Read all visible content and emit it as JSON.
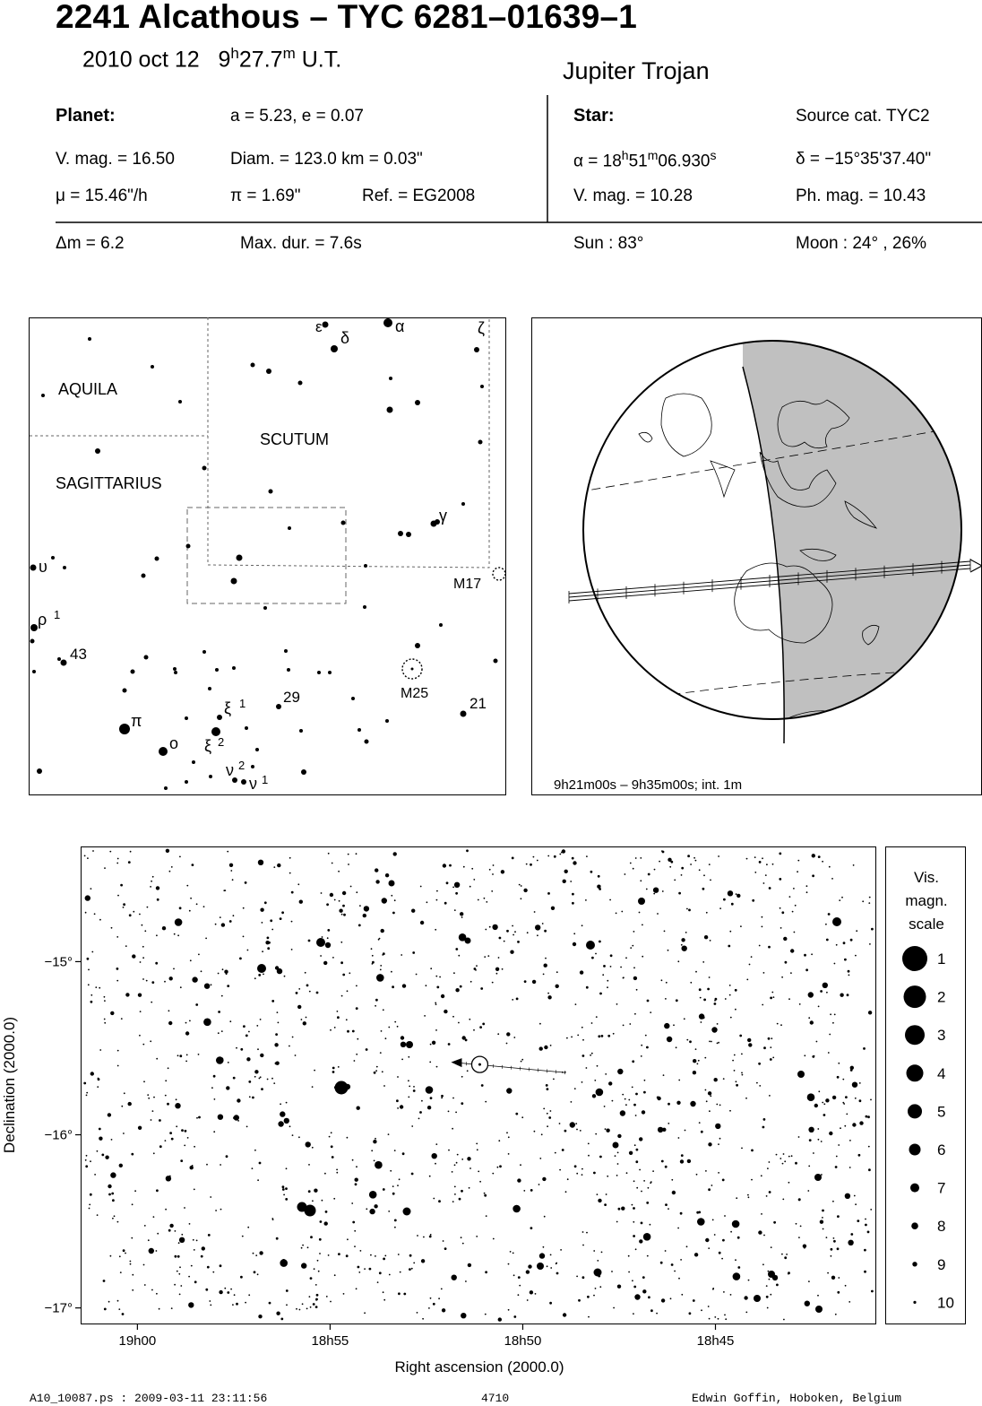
{
  "header": {
    "title": "2241 Alcathous  –  TYC 6281–01639–1",
    "date": "2010 oct 12",
    "time_h": "9",
    "time_h_unit": "h",
    "time_m": "27.7",
    "time_m_unit": "m",
    "time_ut": "U.T.",
    "class": "Jupiter Trojan"
  },
  "planet": {
    "heading": "Planet:",
    "orbit": "a = 5.23, e = 0.07",
    "vmag": "V. mag. = 16.50",
    "diam": "Diam. = 123.0 km = 0.03\"",
    "mu": "μ =  15.46\"/h",
    "pi": "π =  1.69\"",
    "ref": "Ref. = EG2008",
    "dm": "Δm = 6.2",
    "maxdur": "Max. dur. = 7.6s"
  },
  "star": {
    "heading": "Star:",
    "source": "Source cat.  TYC2",
    "alpha_pre": "α = 18",
    "alpha_h": "h",
    "alpha_min": "51",
    "alpha_m": "m",
    "alpha_sec": "06.930",
    "alpha_s": "s",
    "delta": "δ = −15°35'37.40\"",
    "vmag": "V. mag. = 10.28",
    "phmag": "Ph. mag. = 10.43",
    "sun": "Sun :  83°",
    "moon": "Moon :  24° , 26%"
  },
  "finder": {
    "constellations": [
      "AQUILA",
      "SCUTUM",
      "SAGITTARIUS"
    ],
    "labels": [
      {
        "t": "ε",
        "x": 352,
        "y": 370,
        "s": 17
      },
      {
        "t": "δ",
        "x": 380,
        "y": 383,
        "s": 18
      },
      {
        "t": "α",
        "x": 441,
        "y": 370,
        "s": 18
      },
      {
        "t": "ζ",
        "x": 533,
        "y": 372,
        "s": 18
      },
      {
        "t": "γ",
        "x": 490,
        "y": 581,
        "s": 18
      },
      {
        "t": "υ",
        "x": 43,
        "y": 638,
        "s": 18
      },
      {
        "t": "ρ",
        "x": 42,
        "y": 697,
        "s": 18
      },
      {
        "t": "1",
        "x": 60,
        "y": 690,
        "s": 13
      },
      {
        "t": "43",
        "x": 78,
        "y": 735,
        "s": 17
      },
      {
        "t": "M17",
        "x": 506,
        "y": 656,
        "s": 16
      },
      {
        "t": "M25",
        "x": 447,
        "y": 778,
        "s": 16
      },
      {
        "t": "29",
        "x": 316,
        "y": 783,
        "s": 17
      },
      {
        "t": "21",
        "x": 524,
        "y": 790,
        "s": 17
      },
      {
        "t": "ξ",
        "x": 250,
        "y": 796,
        "s": 18
      },
      {
        "t": "1",
        "x": 267,
        "y": 789,
        "s": 13
      },
      {
        "t": "π",
        "x": 146,
        "y": 810,
        "s": 18
      },
      {
        "t": "ο",
        "x": 189,
        "y": 835,
        "s": 18
      },
      {
        "t": "ξ",
        "x": 228,
        "y": 838,
        "s": 18
      },
      {
        "t": "2",
        "x": 243,
        "y": 832,
        "s": 13
      },
      {
        "t": "ν",
        "x": 252,
        "y": 865,
        "s": 18
      },
      {
        "t": "2",
        "x": 266,
        "y": 858,
        "s": 13
      },
      {
        "t": "ν",
        "x": 278,
        "y": 880,
        "s": 18
      },
      {
        "t": "1",
        "x": 292,
        "y": 874,
        "s": 13
      }
    ]
  },
  "globe": {
    "caption": "9h21m00s –  9h35m00s; int.  1m"
  },
  "chart_data": {
    "type": "scatter",
    "xlabel": "Right ascension (2000.0)",
    "ylabel": "Declination (2000.0)",
    "x_ticks": [
      "19h00",
      "18h55",
      "18h50",
      "18h45"
    ],
    "y_ticks": [
      "−15°",
      "−16°",
      "−17°"
    ],
    "x_tick_ra_min": [
      1140,
      1135,
      1130,
      1125
    ],
    "y_tick_deg": [
      -15,
      -16,
      -17
    ],
    "target": {
      "ra_min": 1131.116,
      "dec_deg": -15.594
    },
    "scale_title": [
      "Vis.",
      "magn.",
      "scale"
    ],
    "scale_mags": [
      "1",
      "2",
      "3",
      "4",
      "5",
      "6",
      "7",
      "8",
      "9",
      "10"
    ]
  },
  "footer": {
    "file": "A10_10087.ps : 2009-03-11 23:11:56",
    "num": "4710",
    "author": "Edwin Goffin, Hoboken, Belgium"
  }
}
